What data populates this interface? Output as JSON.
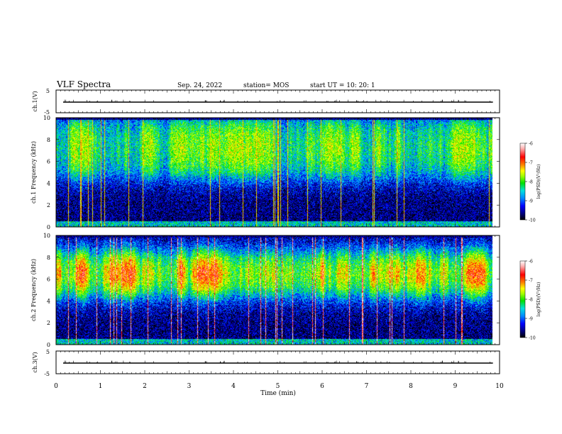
{
  "header": {
    "title": "VLF Spectra",
    "date": "Sep. 24, 2022",
    "station": "station= MOS",
    "start": "start  UT =   10: 20: 1"
  },
  "colors": {
    "colormap": [
      "#000000",
      "#00007a",
      "#0000ff",
      "#0088ff",
      "#00e0e0",
      "#00e000",
      "#a0ff00",
      "#ffff00",
      "#ff8000",
      "#ff0000",
      "#ffb0b0",
      "#ffffff"
    ],
    "axis": "#000000"
  },
  "chart_data": [
    {
      "type": "line",
      "panel": "ch1-waveform",
      "ylabel": "ch.1(V)",
      "ylim": [
        -5,
        5
      ],
      "yticks": [
        "5",
        "-5"
      ],
      "trace_level": 0
    },
    {
      "type": "heatmap",
      "panel": "ch1-spectrogram",
      "ylabel": "ch.1  Frequency (kHz)",
      "ylim": [
        0,
        10
      ],
      "yticks": [
        "0",
        "2",
        "4",
        "6",
        "8",
        "10"
      ],
      "colorbar": {
        "label": "log(PSD)(V²/Hz)",
        "ticks": [
          "-6",
          "-7",
          "-8",
          "-9",
          "-10"
        ],
        "range": [
          -10,
          -6
        ]
      },
      "intense_band_khz": [
        4.5,
        10
      ],
      "intense_band_level": -7.8
    },
    {
      "type": "heatmap",
      "panel": "ch2-spectrogram",
      "ylabel": "ch.2  Frequency (kHz)",
      "ylim": [
        0,
        10
      ],
      "yticks": [
        "0",
        "2",
        "4",
        "6",
        "8",
        "10"
      ],
      "colorbar": {
        "label": "log(PSD)(V²/Hz)",
        "ticks": [
          "-6",
          "-7",
          "-8",
          "-9",
          "-10"
        ],
        "range": [
          -10,
          -6
        ]
      },
      "intense_band_khz": [
        4.5,
        8.5
      ],
      "intense_band_level": -6.9
    },
    {
      "type": "line",
      "panel": "ch3-waveform",
      "ylabel": "ch.3(V)",
      "ylim": [
        -5,
        5
      ],
      "yticks": [
        "5",
        "-5"
      ],
      "trace_level": 0
    }
  ],
  "xaxis": {
    "label": "Time  (min)",
    "ticks": [
      "0",
      "1",
      "2",
      "3",
      "4",
      "5",
      "6",
      "7",
      "8",
      "9",
      "10"
    ],
    "range": [
      0,
      10
    ],
    "data_end_min": 9.85
  }
}
